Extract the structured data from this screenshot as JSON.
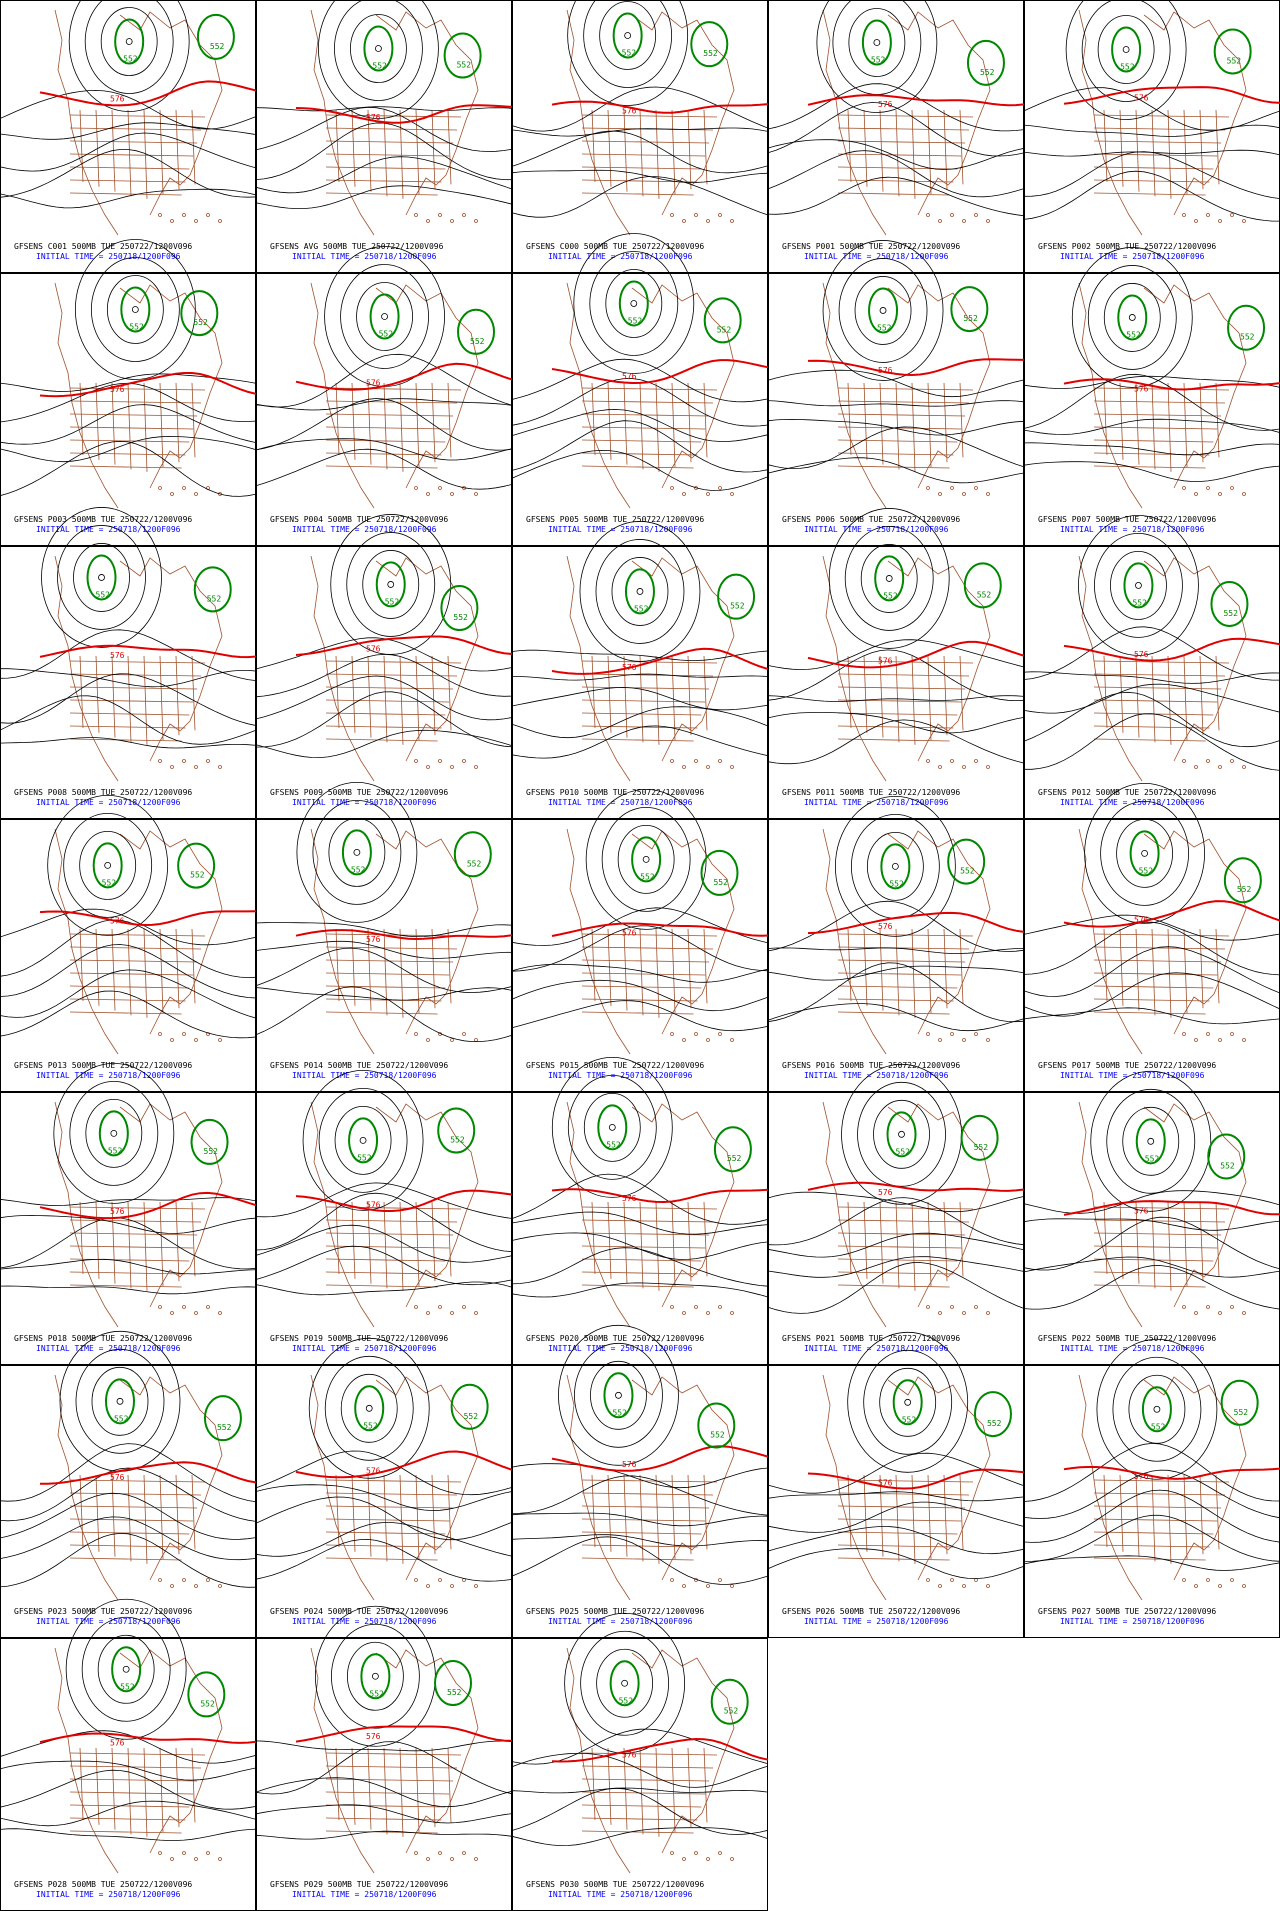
{
  "contours": {
    "low": "552",
    "high": "576"
  },
  "panels": [
    {
      "title": "GFSENS C001 500MB TUE 250722/1200V096",
      "subtitle": "INITIAL TIME = 250718/1200F096"
    },
    {
      "title": "GFSENS AVG 500MB TUE 250722/1200V096",
      "subtitle": "INITIAL TIME = 250718/1200F096"
    },
    {
      "title": "GFSENS C000 500MB TUE 250722/1200V096",
      "subtitle": "INITIAL TIME = 250718/1200F096"
    },
    {
      "title": "GFSENS P001 500MB TUE 250722/1200V096",
      "subtitle": "INITIAL TIME = 250718/1200F096"
    },
    {
      "title": "GFSENS P002 500MB TUE 250722/1200V096",
      "subtitle": "INITIAL TIME = 250718/1200F096"
    },
    {
      "title": "GFSENS P003 500MB TUE 250722/1200V096",
      "subtitle": "INITIAL TIME = 250718/1200F096"
    },
    {
      "title": "GFSENS P004 500MB TUE 250722/1200V096",
      "subtitle": "INITIAL TIME = 250718/1200F096"
    },
    {
      "title": "GFSENS P005 500MB TUE 250722/1200V096",
      "subtitle": "INITIAL TIME = 250718/1200F096"
    },
    {
      "title": "GFSENS P006 500MB TUE 250722/1200V096",
      "subtitle": "INITIAL TIME = 250718/1200F096"
    },
    {
      "title": "GFSENS P007 500MB TUE 250722/1200V096",
      "subtitle": "INITIAL TIME = 250718/1200F096"
    },
    {
      "title": "GFSENS P008 500MB TUE 250722/1200V096",
      "subtitle": "INITIAL TIME = 250718/1200F096"
    },
    {
      "title": "GFSENS P009 500MB TUE 250722/1200V096",
      "subtitle": "INITIAL TIME = 250718/1200F096"
    },
    {
      "title": "GFSENS P010 500MB TUE 250722/1200V096",
      "subtitle": "INITIAL TIME = 250718/1200F096"
    },
    {
      "title": "GFSENS P011 500MB TUE 250722/1200V096",
      "subtitle": "INITIAL TIME = 250718/1200F096"
    },
    {
      "title": "GFSENS P012 500MB TUE 250722/1200V096",
      "subtitle": "INITIAL TIME = 250718/1200F096"
    },
    {
      "title": "GFSENS P013 500MB TUE 250722/1200V096",
      "subtitle": "INITIAL TIME = 250718/1200F096"
    },
    {
      "title": "GFSENS P014 500MB TUE 250722/1200V096",
      "subtitle": "INITIAL TIME = 250718/1200F096"
    },
    {
      "title": "GFSENS P015 500MB TUE 250722/1200V096",
      "subtitle": "INITIAL TIME = 250718/1200F096"
    },
    {
      "title": "GFSENS P016 500MB TUE 250722/1200V096",
      "subtitle": "INITIAL TIME = 250718/1200F096"
    },
    {
      "title": "GFSENS P017 500MB TUE 250722/1200V096",
      "subtitle": "INITIAL TIME = 250718/1200F096"
    },
    {
      "title": "GFSENS P018 500MB TUE 250722/1200V096",
      "subtitle": "INITIAL TIME = 250718/1200F096"
    },
    {
      "title": "GFSENS P019 500MB TUE 250722/1200V096",
      "subtitle": "INITIAL TIME = 250718/1200F096"
    },
    {
      "title": "GFSENS P020 500MB TUE 250722/1200V096",
      "subtitle": "INITIAL TIME = 250718/1200F096"
    },
    {
      "title": "GFSENS P021 500MB TUE 250722/1200V096",
      "subtitle": "INITIAL TIME = 250718/1200F096"
    },
    {
      "title": "GFSENS P022 500MB TUE 250722/1200V096",
      "subtitle": "INITIAL TIME = 250718/1200F096"
    },
    {
      "title": "GFSENS P023 500MB TUE 250722/1200V096",
      "subtitle": "INITIAL TIME = 250718/1200F096"
    },
    {
      "title": "GFSENS P024 500MB TUE 250722/1200V096",
      "subtitle": "INITIAL TIME = 250718/1200F096"
    },
    {
      "title": "GFSENS P025 500MB TUE 250722/1200V096",
      "subtitle": "INITIAL TIME = 250718/1200F096"
    },
    {
      "title": "GFSENS P026 500MB TUE 250722/1200V096",
      "subtitle": "INITIAL TIME = 250718/1200F096"
    },
    {
      "title": "GFSENS P027 500MB TUE 250722/1200V096",
      "subtitle": "INITIAL TIME = 250718/1200F096"
    },
    {
      "title": "GFSENS P028 500MB TUE 250722/1200V096",
      "subtitle": "INITIAL TIME = 250718/1200F096"
    },
    {
      "title": "GFSENS P029 500MB TUE 250722/1200V096",
      "subtitle": "INITIAL TIME = 250718/1200F096"
    },
    {
      "title": "GFSENS P030 500MB TUE 250722/1200V096",
      "subtitle": "INITIAL TIME = 250718/1200F096"
    }
  ]
}
